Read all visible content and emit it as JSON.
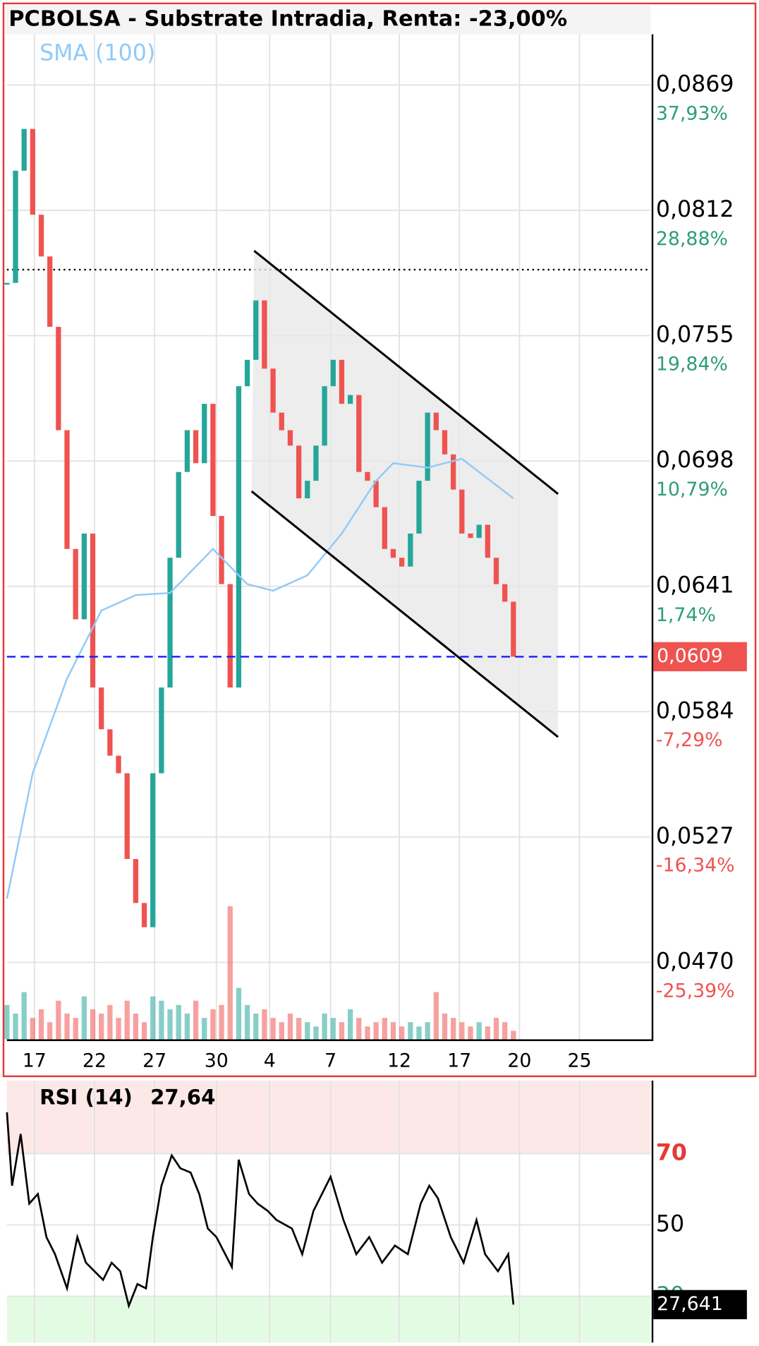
{
  "chart_data": [
    {
      "type": "candlestick",
      "title": "PCBOLSA - Substrate Intradia, Renta: -23,00%",
      "x": [
        0,
        2,
        4,
        6,
        8,
        10,
        12,
        14,
        16,
        18,
        20,
        22,
        24,
        26,
        28,
        30,
        32,
        34,
        36,
        38,
        40,
        42,
        44,
        46,
        48,
        50,
        52,
        54,
        56,
        58,
        60,
        62,
        64,
        66,
        68,
        70,
        72,
        74,
        76,
        78,
        80,
        82,
        84,
        86,
        88,
        90,
        92,
        94,
        96,
        98,
        100,
        102,
        104,
        106,
        108,
        110,
        112,
        114,
        116,
        118
      ],
      "close": [
        0.0779,
        0.083,
        0.0849,
        0.081,
        0.0791,
        0.0759,
        0.0712,
        0.0658,
        0.0626,
        0.0665,
        0.0595,
        0.0576,
        0.0564,
        0.0556,
        0.0517,
        0.0497,
        0.0486,
        0.0556,
        0.0595,
        0.0654,
        0.0693,
        0.0712,
        0.0697,
        0.0724,
        0.0673,
        0.0642,
        0.0595,
        0.0732,
        0.0744,
        0.0771,
        0.074,
        0.072,
        0.0712,
        0.0705,
        0.0681,
        0.0689,
        0.0705,
        0.0732,
        0.0744,
        0.0724,
        0.0728,
        0.0693,
        0.0689,
        0.0677,
        0.0658,
        0.0654,
        0.065,
        0.0665,
        0.0689,
        0.072,
        0.0712,
        0.0701,
        0.0685,
        0.0665,
        0.0663,
        0.0669,
        0.0654,
        0.0642,
        0.0634,
        0.0609
      ],
      "up_color": "#26a69a",
      "down_color": "#ef5350",
      "volume": [
        40,
        30,
        55,
        25,
        35,
        20,
        45,
        30,
        25,
        50,
        35,
        30,
        40,
        25,
        45,
        30,
        20,
        50,
        45,
        35,
        40,
        30,
        45,
        25,
        35,
        40,
        155,
        60,
        40,
        30,
        35,
        25,
        20,
        30,
        25,
        20,
        15,
        30,
        25,
        20,
        35,
        25,
        15,
        20,
        25,
        20,
        15,
        20,
        15,
        20,
        55,
        30,
        25,
        20,
        15,
        20,
        15,
        25,
        20,
        10
      ],
      "vlim": [
        0,
        160
      ],
      "sma": {
        "name": "SMA (100)",
        "color": "#90caf9",
        "x": [
          0,
          6,
          14,
          22,
          30,
          38,
          48,
          56,
          62,
          70,
          78,
          86,
          90,
          98,
          106,
          110,
          118
        ],
        "values": [
          0.0499,
          0.0556,
          0.0599,
          0.063,
          0.0637,
          0.0638,
          0.0658,
          0.0642,
          0.0639,
          0.0646,
          0.0665,
          0.0689,
          0.0697,
          0.0695,
          0.0699,
          0.0693,
          0.0681
        ]
      },
      "xlim": [
        0,
        150
      ],
      "xticks": [
        {
          "value": 6.4,
          "label": "17"
        },
        {
          "value": 20.4,
          "label": "22"
        },
        {
          "value": 34.4,
          "label": "27"
        },
        {
          "value": 48.8,
          "label": "30"
        },
        {
          "value": 61.2,
          "label": "4"
        },
        {
          "value": 75.4,
          "label": "7"
        },
        {
          "value": 91.4,
          "label": "12"
        },
        {
          "value": 105.4,
          "label": "17"
        },
        {
          "value": 119.4,
          "label": "20"
        },
        {
          "value": 133.4,
          "label": "25"
        }
      ],
      "ylim": [
        0.0435,
        0.0892
      ],
      "yticks": [
        {
          "value": 0.0869,
          "label": "0,0869"
        },
        {
          "value": 0.0812,
          "label": "0,0812"
        },
        {
          "value": 0.0755,
          "label": "0,0755"
        },
        {
          "value": 0.0698,
          "label": "0,0698"
        },
        {
          "value": 0.0641,
          "label": "0,0641"
        },
        {
          "value": 0.0584,
          "label": "0,0584"
        },
        {
          "value": 0.0527,
          "label": "0,0527"
        },
        {
          "value": 0.047,
          "label": "0,0470"
        }
      ],
      "y2lim": [
        -30.95,
        41.59
      ],
      "y2ticks": [
        {
          "value": 37.93,
          "label": "37,93%"
        },
        {
          "value": 28.88,
          "label": "28,88%"
        },
        {
          "value": 19.84,
          "label": "19,84%"
        },
        {
          "value": 10.79,
          "label": "10,79%"
        },
        {
          "value": 1.74,
          "label": "1,74%"
        },
        {
          "value": -7.29,
          "label": "-7,29%"
        },
        {
          "value": -16.34,
          "label": "-16,34%"
        },
        {
          "value": -25.39,
          "label": "-25,39%"
        }
      ],
      "current_price": {
        "value": 0.0609,
        "label": "0,0609"
      },
      "reference_level": 0.0785,
      "grid": true
    },
    {
      "type": "line",
      "title": "RSI (14)",
      "value_text": "27,64",
      "x": [
        0,
        1.2,
        3.2,
        5.2,
        7.2,
        9.2,
        11.2,
        14,
        16.4,
        18.4,
        20.4,
        22.4,
        24.4,
        26.4,
        28.4,
        30.4,
        32.4,
        34,
        36,
        38.4,
        40.4,
        42.8,
        44.8,
        46.8,
        48.8,
        52.4,
        54,
        56.4,
        58.4,
        60.8,
        62.8,
        66.4,
        68.8,
        71.4,
        75.4,
        78.4,
        81.4,
        84.4,
        87.4,
        90.4,
        93.4,
        96.4,
        98.4,
        100.4,
        103.4,
        106.4,
        109.4,
        111.4,
        114.4,
        116.8,
        118
      ],
      "values": [
        81.6,
        61,
        75.5,
        56,
        58.7,
        46.6,
        41.8,
        32.2,
        46.6,
        39.4,
        37,
        34.6,
        39.4,
        37,
        27.3,
        33.4,
        32.2,
        46.6,
        61,
        69.5,
        65.9,
        64.7,
        58.7,
        49,
        46.6,
        38.2,
        68.3,
        58.7,
        56,
        53.9,
        51.4,
        49,
        41.8,
        53.9,
        63.5,
        51.4,
        41.8,
        46.6,
        39.4,
        44.2,
        41.8,
        56,
        61,
        57.5,
        46.6,
        39.4,
        51.4,
        41.8,
        37,
        41.8,
        27.641
      ],
      "color": "#000000",
      "xlim": [
        0,
        150
      ],
      "ylim": [
        17,
        90.5
      ],
      "yticks": [
        70,
        50,
        30
      ],
      "ytick_colors": [
        "#e53935",
        "#000000",
        "#2e9e74"
      ],
      "zone_colors": [
        "#fde8e8",
        "#e3fbe3"
      ],
      "current": {
        "value": 27.641,
        "label": "27,641"
      }
    }
  ]
}
